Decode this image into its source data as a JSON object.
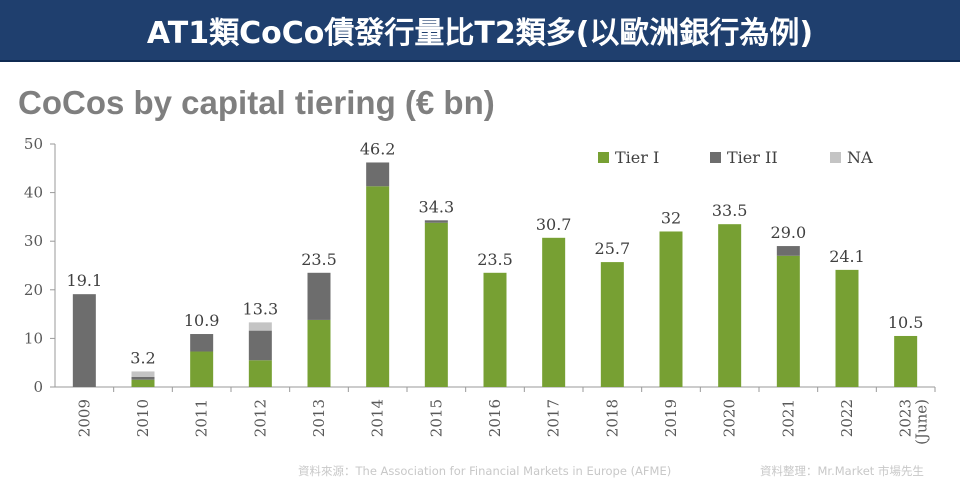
{
  "banner": {
    "title": "AT1類CoCo債發行量比T2類多(以歐洲銀行為例)"
  },
  "footer": {
    "source": "資料來源：The Association for Financial Markets in Europe (AFME)",
    "compiled": "資料整理：Mr.Market 市場先生"
  },
  "colors": {
    "tier1": "#77a033",
    "tier2": "#6d6d6d",
    "na": "#c4c4c4",
    "banner": "#1f3f6e"
  },
  "chart_data": {
    "type": "bar",
    "stacked": true,
    "title": "CoCos by capital tiering (€ bn)",
    "categories": [
      "2009",
      "2010",
      "2011",
      "2012",
      "2013",
      "2014",
      "2015",
      "2016",
      "2017",
      "2018",
      "2019",
      "2020",
      "2021",
      "2022",
      "2023 (June)"
    ],
    "series": [
      {
        "name": "Tier I",
        "values": [
          0,
          1.5,
          7.3,
          5.5,
          13.8,
          41.3,
          33.8,
          23.5,
          30.7,
          25.7,
          32,
          33.5,
          27,
          24.1,
          10.5
        ]
      },
      {
        "name": "Tier II",
        "values": [
          19.1,
          0.6,
          3.6,
          6.1,
          9.7,
          4.9,
          0.5,
          0,
          0,
          0,
          0,
          0,
          2,
          0,
          0
        ]
      },
      {
        "name": "NA",
        "values": [
          0,
          1.1,
          0,
          1.7,
          0,
          0,
          0,
          0,
          0,
          0,
          0,
          0,
          0,
          0,
          0
        ]
      }
    ],
    "totals_labels": [
      "19.1",
      "3.2",
      "10.9",
      "13.3",
      "23.5",
      "46.2",
      "34.3",
      "23.5",
      "30.7",
      "25.7",
      "32",
      "33.5",
      "29.0",
      "24.1",
      "10.5"
    ],
    "ylim": [
      0,
      50
    ],
    "yticks": [
      "0",
      "10",
      "20",
      "30",
      "40",
      "50"
    ],
    "legend_position": "top-right",
    "grid": false
  }
}
